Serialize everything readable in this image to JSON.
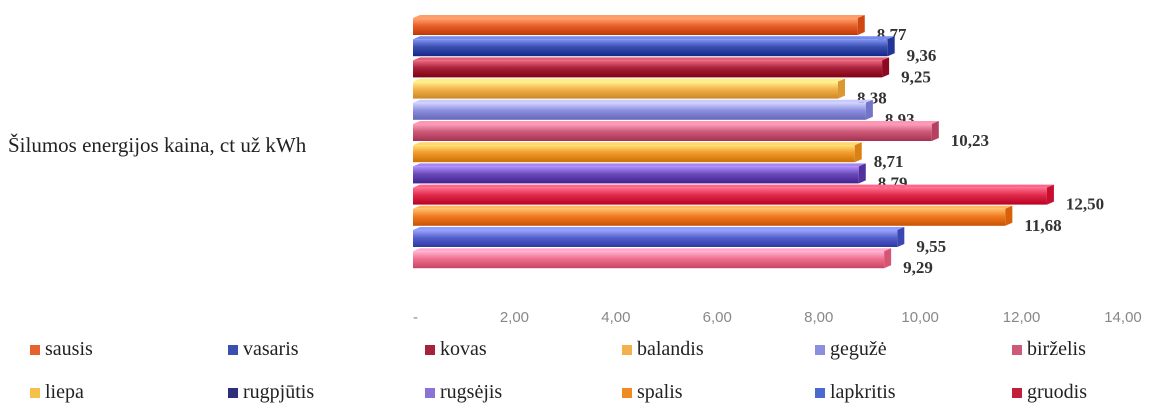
{
  "chart_data": {
    "type": "bar",
    "orientation": "horizontal",
    "title": "",
    "category_label": "Šilumos energijos kaina, ct už kWh",
    "xlim": [
      0,
      14
    ],
    "x_ticks": [
      "-",
      "2,00",
      "4,00",
      "6,00",
      "8,00",
      "10,00",
      "12,00",
      "14,00"
    ],
    "grid": false,
    "legend_position": "bottom",
    "series": [
      {
        "name": "sausis",
        "value": 8.77,
        "label": "8,77",
        "color": "#e8612c"
      },
      {
        "name": "vasaris",
        "value": 9.36,
        "label": "9,36",
        "color": "#3a4fb0"
      },
      {
        "name": "kovas",
        "value": 9.25,
        "label": "9,25",
        "color": "#a8213a"
      },
      {
        "name": "balandis",
        "value": 8.38,
        "label": "8,38",
        "color": "#f4b04a"
      },
      {
        "name": "gegužė",
        "value": 8.93,
        "label": "8,93",
        "color": "#8c8ee0"
      },
      {
        "name": "birželis",
        "value": 10.23,
        "label": "10,23",
        "color": "#cc5a78"
      },
      {
        "name": "liepa",
        "value": 8.71,
        "label": "8,71",
        "color": "#f39a2c"
      },
      {
        "name": "rugpjūtis",
        "value": 8.79,
        "label": "8,79",
        "color": "#6a4ab8"
      },
      {
        "name": "rugsėjis",
        "value": 12.5,
        "label": "12,50",
        "color": "#e0294a"
      },
      {
        "name": "spalis",
        "value": 11.68,
        "label": "11,68",
        "color": "#f07a22"
      },
      {
        "name": "lapkritis",
        "value": 9.55,
        "label": "9,55",
        "color": "#5560cc"
      },
      {
        "name": "gruodis",
        "value": 9.29,
        "label": "9,29",
        "color": "#ef6e8e"
      }
    ],
    "legend_colors": {
      "sausis": "#e8612c",
      "vasaris": "#3a4fb0",
      "kovas": "#a8213a",
      "balandis": "#f4b04a",
      "gegužė": "#8c8ee0",
      "birželis": "#cc5a78",
      "liepa": "#f7c04a",
      "rugpjūtis": "#2e2f7a",
      "rugsėjis": "#8a72d6",
      "spalis": "#f08a22",
      "lapkritis": "#4a6ad0",
      "gruodis": "#c0203a"
    }
  }
}
